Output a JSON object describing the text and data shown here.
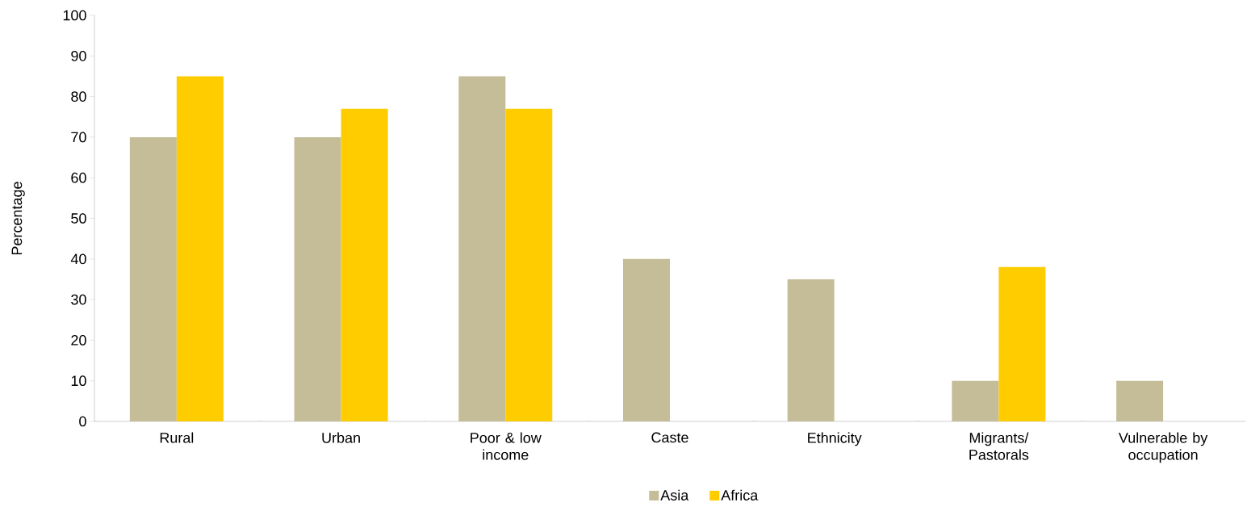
{
  "chart_data": {
    "type": "bar",
    "ylabel": "Percentage",
    "categories": [
      "Rural",
      "Urban",
      "Poor & low income",
      "Caste",
      "Ethnicity",
      "Migrants/ Pastorals",
      "Vulnerable by occupation"
    ],
    "series": [
      {
        "name": "Asia",
        "color": "#c4bd97",
        "values": [
          70,
          70,
          85,
          40,
          35,
          10,
          10
        ]
      },
      {
        "name": "Africa",
        "color": "#ffcc00",
        "values": [
          85,
          77,
          77,
          null,
          null,
          38,
          null
        ]
      }
    ],
    "ylim": [
      0,
      100
    ],
    "yticks": [
      0,
      10,
      20,
      30,
      40,
      50,
      60,
      70,
      80,
      90,
      100
    ],
    "grid": false,
    "legend": "bottom"
  }
}
